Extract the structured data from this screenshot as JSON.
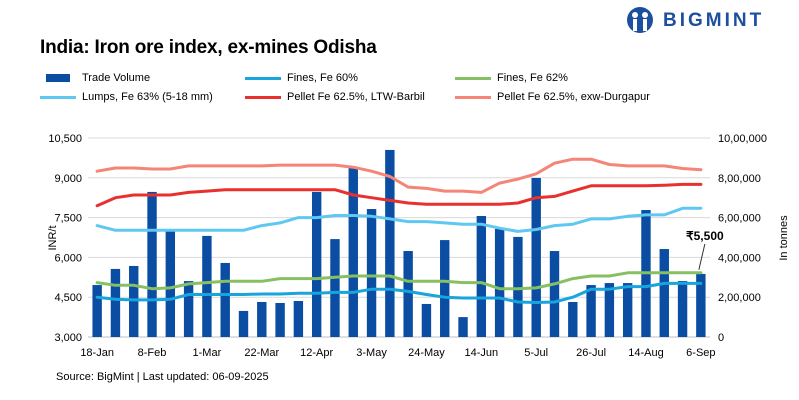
{
  "title": "India: Iron ore index, ex-mines Odisha",
  "logo": {
    "text": "BIGMINT"
  },
  "source": "Source: BigMint | Last updated: 06-09-2025",
  "colors": {
    "bar": "#0a4da2",
    "fines60": "#18a4dc",
    "fines62": "#86c063",
    "lumps": "#5ec8f2",
    "ltw": "#e8302e",
    "durgapur": "#f48577",
    "grid": "#d9d9d9"
  },
  "chart_data": {
    "type": "bar+line",
    "title": "India: Iron ore index, ex-mines Odisha",
    "ylabel": "INR/t",
    "y2label": "In tonnes",
    "ylim": [
      3000,
      10500
    ],
    "yticks": [
      "3,000",
      "4,500",
      "6,000",
      "7,500",
      "9,000",
      "10,500"
    ],
    "y2lim": [
      0,
      1000000
    ],
    "y2ticks": [
      "0",
      "2,00,000",
      "4,00,000",
      "6,00,000",
      "8,00,000",
      "10,00,000"
    ],
    "grid": true,
    "legend_position": "top",
    "xtick_labels": [
      "18-Jan",
      "8-Feb",
      "1-Mar",
      "22-Mar",
      "12-Apr",
      "3-May",
      "24-May",
      "14-Jun",
      "5-Jul",
      "26-Jul",
      "14-Aug",
      "6-Sep"
    ],
    "n_points": 34,
    "annotation": "₹5,500",
    "series": [
      {
        "name": "Trade Volume",
        "kind": "bar",
        "axis": "right",
        "values": [
          261000,
          342000,
          357000,
          729000,
          533000,
          281000,
          508000,
          372000,
          131000,
          176000,
          171000,
          181000,
          729000,
          492000,
          849000,
          643000,
          940000,
          432000,
          166000,
          487000,
          100000,
          608000,
          543000,
          503000,
          799000,
          432000,
          176000,
          261000,
          271000,
          271000,
          638000,
          442000,
          281000,
          317000
        ]
      },
      {
        "name": "Fines, Fe 60%",
        "kind": "line",
        "axis": "left",
        "values": [
          4500,
          4420,
          4400,
          4400,
          4420,
          4600,
          4600,
          4600,
          4600,
          4620,
          4620,
          4650,
          4650,
          4680,
          4680,
          4800,
          4800,
          4720,
          4600,
          4500,
          4470,
          4470,
          4470,
          4320,
          4300,
          4320,
          4500,
          4800,
          4800,
          4900,
          4900,
          5020,
          5020,
          5020
        ]
      },
      {
        "name": "Fines, Fe 62%",
        "kind": "line",
        "axis": "left",
        "values": [
          5050,
          4950,
          4950,
          4820,
          4850,
          5000,
          5050,
          5100,
          5100,
          5100,
          5200,
          5200,
          5200,
          5250,
          5300,
          5300,
          5300,
          5100,
          5100,
          5100,
          5050,
          5050,
          4820,
          4820,
          4850,
          5000,
          5200,
          5300,
          5300,
          5420,
          5420,
          5420,
          5420,
          5420
        ]
      },
      {
        "name": "Lumps, Fe 63% (5-18 mm)",
        "kind": "line",
        "axis": "left",
        "values": [
          7200,
          7020,
          7020,
          7020,
          7020,
          7020,
          7020,
          7020,
          7020,
          7200,
          7300,
          7500,
          7500,
          7580,
          7580,
          7550,
          7450,
          7350,
          7350,
          7300,
          7250,
          7250,
          7100,
          6980,
          7050,
          7200,
          7250,
          7450,
          7450,
          7550,
          7600,
          7600,
          7850,
          7850
        ]
      },
      {
        "name": "Pellet Fe 62.5%, LTW-Barbil",
        "kind": "line",
        "axis": "left",
        "values": [
          7950,
          8250,
          8350,
          8350,
          8350,
          8450,
          8500,
          8550,
          8550,
          8550,
          8550,
          8550,
          8550,
          8550,
          8350,
          8250,
          8150,
          8050,
          8000,
          8000,
          8000,
          8000,
          8000,
          8050,
          8250,
          8300,
          8500,
          8700,
          8700,
          8700,
          8700,
          8720,
          8750,
          8750
        ]
      },
      {
        "name": "Pellet Fe  62.5%, exw-Durgapur",
        "kind": "line",
        "axis": "left",
        "values": [
          9250,
          9370,
          9370,
          9330,
          9330,
          9450,
          9450,
          9450,
          9450,
          9450,
          9480,
          9480,
          9480,
          9480,
          9400,
          9250,
          9050,
          8650,
          8600,
          8500,
          8500,
          8450,
          8800,
          8950,
          9150,
          9550,
          9700,
          9700,
          9500,
          9450,
          9450,
          9450,
          9350,
          9300
        ]
      }
    ]
  }
}
